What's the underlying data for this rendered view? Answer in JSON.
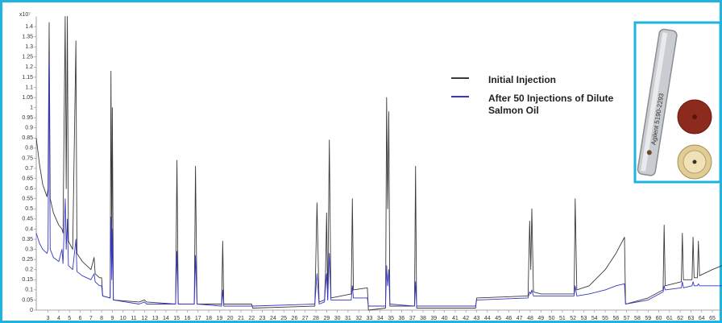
{
  "chart_data": {
    "type": "line",
    "y_multiplier": "x10⁷",
    "xlim": [
      1.9,
      65.9
    ],
    "ylim": [
      0,
      1.45
    ],
    "xticks": [
      3,
      4,
      5,
      6,
      7,
      8,
      9,
      10,
      11,
      12,
      13,
      14,
      15,
      16,
      17,
      18,
      19,
      20,
      21,
      22,
      23,
      24,
      25,
      26,
      27,
      28,
      29,
      30,
      31,
      32,
      33,
      34,
      35,
      36,
      37,
      38,
      39,
      40,
      41,
      42,
      43,
      44,
      45,
      46,
      47,
      48,
      49,
      50,
      51,
      52,
      53,
      54,
      55,
      56,
      57,
      58,
      59,
      60,
      61,
      62,
      63,
      64,
      65
    ],
    "yticks": [
      0,
      0.05,
      0.1,
      0.15,
      0.2,
      0.25,
      0.3,
      0.35,
      0.4,
      0.45,
      0.5,
      0.55,
      0.6,
      0.65,
      0.7,
      0.75,
      0.8,
      0.85,
      0.9,
      0.95,
      1,
      1.05,
      1.1,
      1.15,
      1.2,
      1.25,
      1.3,
      1.35,
      1.4
    ],
    "x": [
      1.9,
      2.2,
      2.5,
      2.9,
      3.0,
      3.1,
      3.2,
      3.5,
      4.0,
      4.3,
      4.4,
      4.6,
      4.7,
      4.8,
      4.9,
      5.3,
      5.6,
      5.7,
      6.2,
      7.0,
      7.3,
      7.4,
      7.8,
      8.0,
      8.1,
      8.8,
      8.87,
      8.95,
      9.0,
      9.1,
      11.5,
      12.0,
      12.2,
      14.9,
      15.03,
      15.15,
      16.65,
      16.76,
      16.9,
      19.2,
      19.3,
      19.4,
      22.0,
      22.1,
      27.9,
      28.1,
      28.3,
      28.8,
      28.9,
      29.0,
      29.1,
      29.25,
      29.4,
      31.3,
      31.4,
      31.5,
      32.8,
      32.9,
      34.5,
      34.6,
      34.7,
      34.8,
      34.9,
      37.2,
      37.3,
      37.4,
      42.9,
      43.0,
      47.8,
      47.95,
      48.05,
      48.15,
      48.3,
      49.0,
      52.1,
      52.2,
      52.35,
      53.5,
      55.0,
      56.0,
      56.8,
      56.9,
      59.0,
      60.4,
      60.5,
      60.6,
      62.1,
      62.2,
      62.3,
      63.1,
      63.2,
      63.3,
      63.6,
      63.7,
      63.8,
      65.0,
      65.9
    ],
    "series": [
      {
        "name": "Initial Injection",
        "color": "#3a3a3a",
        "values": [
          0.85,
          0.72,
          0.62,
          0.56,
          0.6,
          1.42,
          0.55,
          0.48,
          0.42,
          0.4,
          0.38,
          1.45,
          0.6,
          1.45,
          0.34,
          0.3,
          1.33,
          0.28,
          0.24,
          0.2,
          0.26,
          0.18,
          0.16,
          0.16,
          0.07,
          0.06,
          1.18,
          0.3,
          1.0,
          0.05,
          0.04,
          0.05,
          0.04,
          0.03,
          0.74,
          0.03,
          0.03,
          0.71,
          0.03,
          0.03,
          0.34,
          0.03,
          0.03,
          0.01,
          0.02,
          0.53,
          0.04,
          0.05,
          0.18,
          0.48,
          0.05,
          0.84,
          0.06,
          0.08,
          0.55,
          0.1,
          0.11,
          0.0,
          0.01,
          1.05,
          0.5,
          0.98,
          0.02,
          0.02,
          0.71,
          0.01,
          0.01,
          0.06,
          0.07,
          0.44,
          0.2,
          0.5,
          0.09,
          0.08,
          0.08,
          0.55,
          0.1,
          0.12,
          0.2,
          0.28,
          0.36,
          0.03,
          0.06,
          0.1,
          0.42,
          0.12,
          0.14,
          0.38,
          0.15,
          0.15,
          0.36,
          0.16,
          0.16,
          0.34,
          0.17,
          0.2,
          0.22
        ]
      },
      {
        "name": "After 50 Injections of Dilute Salmon Oil",
        "color": "#3636c8",
        "values": [
          0.38,
          0.33,
          0.3,
          0.28,
          0.3,
          1.25,
          0.3,
          0.26,
          0.24,
          0.3,
          0.23,
          0.55,
          0.3,
          0.45,
          0.22,
          0.2,
          0.35,
          0.19,
          0.17,
          0.15,
          0.18,
          0.14,
          0.12,
          0.12,
          0.07,
          0.06,
          0.46,
          0.15,
          0.4,
          0.05,
          0.03,
          0.04,
          0.03,
          0.03,
          0.29,
          0.03,
          0.03,
          0.27,
          0.03,
          0.02,
          0.1,
          0.02,
          0.02,
          0.02,
          0.03,
          0.18,
          0.03,
          0.04,
          0.12,
          0.18,
          0.05,
          0.28,
          0.05,
          0.05,
          0.12,
          0.06,
          0.06,
          0.02,
          0.02,
          0.22,
          0.12,
          0.2,
          0.03,
          0.02,
          0.14,
          0.02,
          0.02,
          0.05,
          0.06,
          0.09,
          0.08,
          0.1,
          0.07,
          0.07,
          0.07,
          0.12,
          0.07,
          0.08,
          0.1,
          0.12,
          0.13,
          0.03,
          0.05,
          0.09,
          0.12,
          0.1,
          0.11,
          0.14,
          0.11,
          0.12,
          0.14,
          0.12,
          0.12,
          0.13,
          0.12,
          0.12,
          0.12
        ]
      }
    ]
  },
  "inset": {
    "tube_text": "Agilent 5190-2293"
  }
}
